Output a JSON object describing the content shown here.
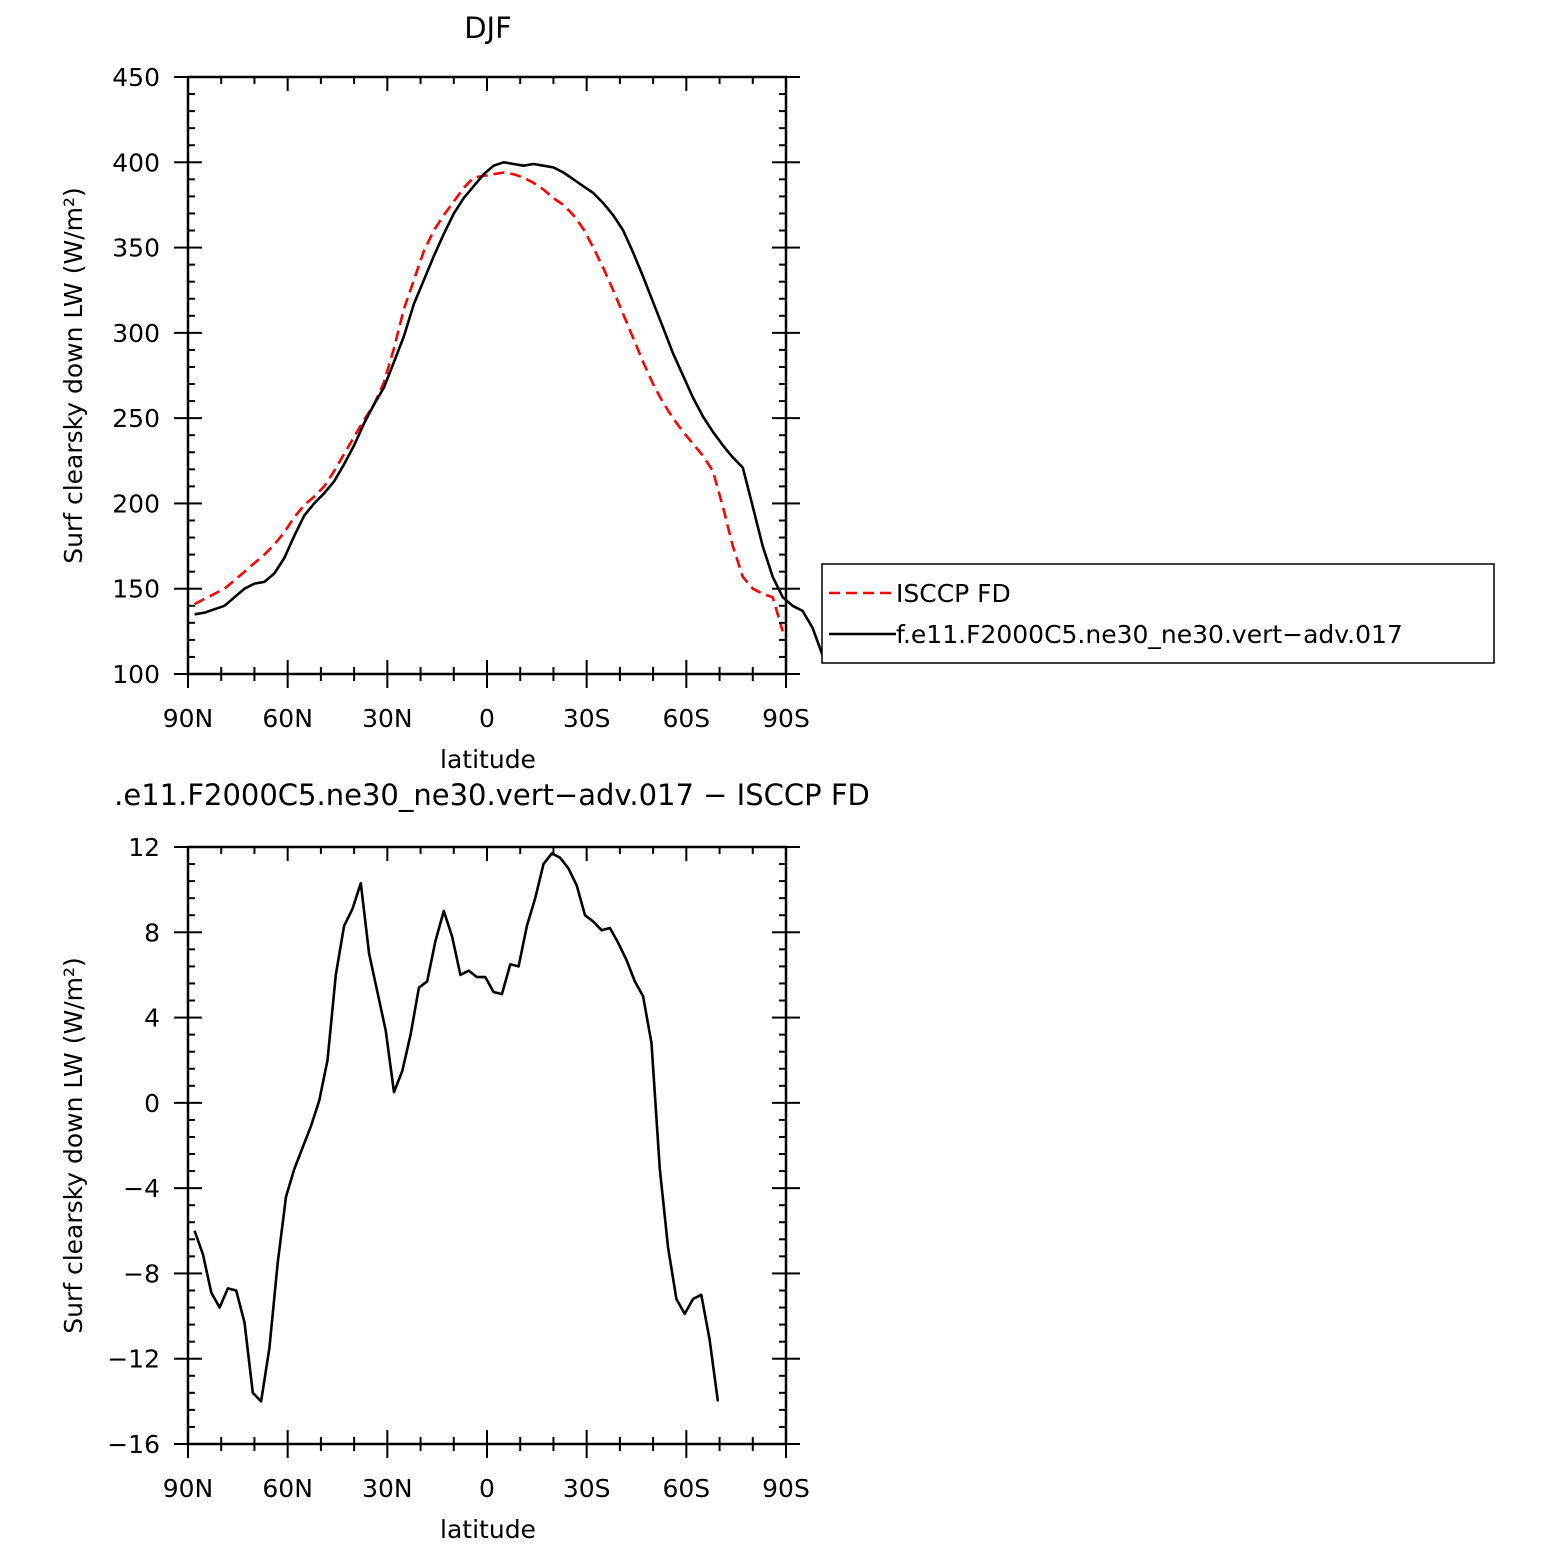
{
  "chart_data": [
    {
      "type": "line",
      "title": "DJF",
      "xlabel": "latitude",
      "ylabel": "Surf clearsky down LW (W/m²)",
      "xlim": [
        90,
        -90
      ],
      "ylim": [
        100,
        450
      ],
      "xticks": [
        {
          "value": 90,
          "label": "90N"
        },
        {
          "value": 60,
          "label": "60N"
        },
        {
          "value": 30,
          "label": "30N"
        },
        {
          "value": 0,
          "label": "0"
        },
        {
          "value": -30,
          "label": "30S"
        },
        {
          "value": -60,
          "label": "60S"
        },
        {
          "value": -90,
          "label": "90S"
        }
      ],
      "yticks": [
        {
          "value": 100,
          "label": "100"
        },
        {
          "value": 150,
          "label": "150"
        },
        {
          "value": 200,
          "label": "200"
        },
        {
          "value": 250,
          "label": "250"
        },
        {
          "value": 300,
          "label": "300"
        },
        {
          "value": 350,
          "label": "350"
        },
        {
          "value": 400,
          "label": "400"
        },
        {
          "value": 450,
          "label": "450"
        }
      ],
      "legend_position": "right",
      "series": [
        {
          "name": "ISCCP FD",
          "color": "#ff0000",
          "style": "dashed",
          "points": [
            [
              88,
              141
            ],
            [
              85,
              144
            ],
            [
              82,
              147
            ],
            [
              79,
              150
            ],
            [
              76,
              155
            ],
            [
              73,
              160
            ],
            [
              70,
              165
            ],
            [
              67,
              170
            ],
            [
              64,
              176
            ],
            [
              61,
              183
            ],
            [
              58,
              192
            ],
            [
              55,
              199
            ],
            [
              52,
              204
            ],
            [
              49,
              210
            ],
            [
              46,
              219
            ],
            [
              43,
              229
            ],
            [
              40,
              239
            ],
            [
              37,
              249
            ],
            [
              34,
              258
            ],
            [
              31,
              271
            ],
            [
              28,
              291
            ],
            [
              25,
              314
            ],
            [
              22,
              331
            ],
            [
              19,
              348
            ],
            [
              16,
              360
            ],
            [
              13,
              369
            ],
            [
              10,
              377
            ],
            [
              7,
              385
            ],
            [
              4,
              391
            ],
            [
              1,
              392
            ],
            [
              -2,
              393
            ],
            [
              -5,
              394
            ],
            [
              -8,
              393
            ],
            [
              -11,
              391
            ],
            [
              -14,
              388
            ],
            [
              -17,
              384
            ],
            [
              -20,
              379
            ],
            [
              -23,
              375
            ],
            [
              -26,
              369
            ],
            [
              -29,
              361
            ],
            [
              -32,
              350
            ],
            [
              -35,
              338
            ],
            [
              -38,
              325
            ],
            [
              -41,
              311
            ],
            [
              -44,
              297
            ],
            [
              -47,
              283
            ],
            [
              -50,
              270
            ],
            [
              -53,
              259
            ],
            [
              -56,
              250
            ],
            [
              -59,
              242
            ],
            [
              -62,
              235
            ],
            [
              -65,
              228
            ],
            [
              -68,
              219
            ],
            [
              -71,
              198
            ],
            [
              -74,
              175
            ],
            [
              -77,
              157
            ],
            [
              -80,
              150
            ],
            [
              -83,
              147
            ],
            [
              -86,
              145
            ],
            [
              -89,
              125
            ]
          ]
        },
        {
          "name": "f.e11.F2000C5.ne30_ne30.vert−adv.017",
          "color": "#000000",
          "style": "solid",
          "points": [
            [
              88,
              135
            ],
            [
              85,
              136
            ],
            [
              82,
              138
            ],
            [
              79,
              140
            ],
            [
              76,
              145
            ],
            [
              73,
              150
            ],
            [
              70,
              153
            ],
            [
              67,
              154
            ],
            [
              64,
              159
            ],
            [
              61,
              168
            ],
            [
              58,
              181
            ],
            [
              55,
              193
            ],
            [
              52,
              200
            ],
            [
              49,
              206
            ],
            [
              46,
              213
            ],
            [
              43,
              223
            ],
            [
              40,
              234
            ],
            [
              37,
              247
            ],
            [
              34,
              258
            ],
            [
              31,
              268
            ],
            [
              28,
              283
            ],
            [
              25,
              298
            ],
            [
              22,
              317
            ],
            [
              19,
              331
            ],
            [
              16,
              345
            ],
            [
              13,
              358
            ],
            [
              10,
              370
            ],
            [
              7,
              379
            ],
            [
              4,
              386
            ],
            [
              1,
              393
            ],
            [
              -2,
              398
            ],
            [
              -5,
              400
            ],
            [
              -8,
              399
            ],
            [
              -11,
              398
            ],
            [
              -14,
              399
            ],
            [
              -17,
              398
            ],
            [
              -20,
              397
            ],
            [
              -23,
              394
            ],
            [
              -26,
              390
            ],
            [
              -29,
              386
            ],
            [
              -32,
              382
            ],
            [
              -35,
              376
            ],
            [
              -38,
              369
            ],
            [
              -41,
              360
            ],
            [
              -44,
              347
            ],
            [
              -47,
              333
            ],
            [
              -50,
              318
            ],
            [
              -53,
              303
            ],
            [
              -56,
              288
            ],
            [
              -59,
              275
            ],
            [
              -62,
              262
            ],
            [
              -65,
              251
            ],
            [
              -68,
              242
            ],
            [
              -71,
              234
            ],
            [
              -74,
              227
            ],
            [
              -77,
              221
            ],
            [
              -80,
              198
            ],
            [
              -83,
              175
            ],
            [
              -86,
              157
            ],
            [
              -89,
              145
            ],
            [
              -92,
              140
            ],
            [
              -95,
              137
            ],
            [
              -98,
              127
            ],
            [
              -101,
              111
            ]
          ]
        }
      ]
    },
    {
      "type": "line",
      "title": ".e11.F2000C5.ne30_ne30.vert−adv.017 − ISCCP FD",
      "xlabel": "latitude",
      "ylabel": "Surf clearsky down LW (W/m²)",
      "xlim": [
        90,
        -90
      ],
      "ylim": [
        -16,
        12
      ],
      "xticks": [
        {
          "value": 90,
          "label": "90N"
        },
        {
          "value": 60,
          "label": "60N"
        },
        {
          "value": 30,
          "label": "30N"
        },
        {
          "value": 0,
          "label": "0"
        },
        {
          "value": -30,
          "label": "30S"
        },
        {
          "value": -60,
          "label": "60S"
        },
        {
          "value": -90,
          "label": "90S"
        }
      ],
      "yticks": [
        {
          "value": -16,
          "label": "−16"
        },
        {
          "value": -12,
          "label": "−12"
        },
        {
          "value": -8,
          "label": "−8"
        },
        {
          "value": -4,
          "label": "−4"
        },
        {
          "value": 0,
          "label": "0"
        },
        {
          "value": 4,
          "label": "4"
        },
        {
          "value": 8,
          "label": "8"
        },
        {
          "value": 12,
          "label": "12"
        }
      ],
      "series": [
        {
          "name": "",
          "color": "#000000",
          "style": "solid",
          "points": [
            [
              88,
              -6
            ],
            [
              85.5,
              -7.1
            ],
            [
              83,
              -8.9
            ],
            [
              80.5,
              -9.6
            ],
            [
              78,
              -8.7
            ],
            [
              75.5,
              -8.8
            ],
            [
              73,
              -10.3
            ],
            [
              70.5,
              -13.6
            ],
            [
              68,
              -14
            ],
            [
              65.5,
              -11.5
            ],
            [
              63,
              -7.5
            ],
            [
              60.5,
              -4.4
            ],
            [
              58,
              -3.1
            ],
            [
              55.5,
              -2.1
            ],
            [
              53,
              -1.1
            ],
            [
              50.5,
              0.1
            ],
            [
              48,
              2
            ],
            [
              45.5,
              6
            ],
            [
              43,
              8.3
            ],
            [
              40.5,
              9.1
            ],
            [
              38,
              10.3
            ],
            [
              35.5,
              7
            ],
            [
              33,
              5.2
            ],
            [
              30.5,
              3.4
            ],
            [
              28,
              0.5
            ],
            [
              25.5,
              1.5
            ],
            [
              23,
              3.2
            ],
            [
              20.5,
              5.4
            ],
            [
              18,
              5.7
            ],
            [
              15.5,
              7.6
            ],
            [
              13,
              9
            ],
            [
              10.5,
              7.8
            ],
            [
              8,
              6
            ],
            [
              5.5,
              6.2
            ],
            [
              3,
              5.9
            ],
            [
              0.5,
              5.9
            ],
            [
              -2,
              5.2
            ],
            [
              -4.5,
              5.1
            ],
            [
              -7,
              6.5
            ],
            [
              -9.5,
              6.4
            ],
            [
              -12,
              8.3
            ],
            [
              -14.5,
              9.6
            ],
            [
              -17,
              11.2
            ],
            [
              -19.5,
              11.7
            ],
            [
              -22,
              11.5
            ],
            [
              -24.5,
              11
            ],
            [
              -27,
              10.2
            ],
            [
              -29.5,
              8.8
            ],
            [
              -32,
              8.5
            ],
            [
              -34.5,
              8.1
            ],
            [
              -37,
              8.2
            ],
            [
              -39.5,
              7.5
            ],
            [
              -42,
              6.7
            ],
            [
              -44.5,
              5.7
            ],
            [
              -47,
              5
            ],
            [
              -49.5,
              2.8
            ],
            [
              -52,
              -3.1
            ],
            [
              -54.5,
              -6.8
            ],
            [
              -57,
              -9.2
            ],
            [
              -59.5,
              -9.9
            ],
            [
              -62,
              -9.2
            ],
            [
              -64.5,
              -9
            ],
            [
              -67,
              -11.1
            ],
            [
              -69.5,
              -14
            ]
          ]
        }
      ]
    }
  ]
}
